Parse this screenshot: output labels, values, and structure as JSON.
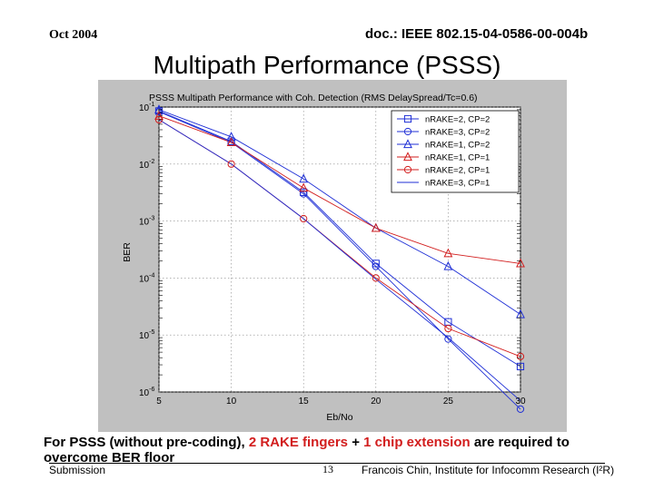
{
  "header": {
    "date": "Oct 2004",
    "doc_id": "doc.: IEEE 802.15-04-0586-00-004b",
    "slide_title": "Multipath Performance (PSSS)"
  },
  "caption": {
    "prefix": "For PSSS (without pre-coding), ",
    "highlight_1": "2 RAKE fingers",
    "middle": " + ",
    "highlight_2": "1 chip extension",
    "suffix": " are required to overcome BER floor"
  },
  "footer": {
    "submission": "Submission",
    "page_number": "13",
    "author": "Francois Chin, Institute for Infocomm Research (I²R)"
  },
  "chart_data": {
    "type": "line",
    "title": "PSSS Multipath Performance with Coh. Detection (RMS DelaySpread/Tc=0.6)",
    "xlabel": "Eb/No",
    "ylabel": "BER",
    "yscale": "log",
    "xlim": [
      5,
      30
    ],
    "ylim": [
      1e-06,
      0.1
    ],
    "x_ticks": [
      "5",
      "10",
      "15",
      "20",
      "25",
      "30"
    ],
    "y_ticks": [
      {
        "value": 0.1,
        "mantissa": "10",
        "exp": "-1"
      },
      {
        "value": 0.01,
        "mantissa": "10",
        "exp": "-2"
      },
      {
        "value": 0.001,
        "mantissa": "10",
        "exp": "-3"
      },
      {
        "value": 0.0001,
        "mantissa": "10",
        "exp": "-4"
      },
      {
        "value": 1e-05,
        "mantissa": "10",
        "exp": "-5"
      },
      {
        "value": 1e-06,
        "mantissa": "10",
        "exp": "-6"
      }
    ],
    "grid": true,
    "legend_position": "top-right",
    "x": [
      5,
      10,
      15,
      20,
      25,
      30
    ],
    "series": [
      {
        "name": "nRAKE=2, CP=2",
        "color": "#1f2fd6",
        "marker": "square",
        "values": [
          0.085,
          0.025,
          0.0032,
          0.00018,
          1.7e-05,
          2.8e-06
        ]
      },
      {
        "name": "nRAKE=3, CP=2",
        "color": "#1f2fd6",
        "marker": "circle",
        "values": [
          0.083,
          0.024,
          0.003,
          0.00016,
          8.5e-06,
          5e-07
        ]
      },
      {
        "name": "nRAKE=1, CP=2",
        "color": "#1f2fd6",
        "marker": "triangle",
        "values": [
          0.09,
          0.03,
          0.0055,
          0.00075,
          0.00016,
          2.3e-05
        ]
      },
      {
        "name": "nRAKE=1, CP=1",
        "color": "#d21e1e",
        "marker": "triangle",
        "values": [
          0.07,
          0.024,
          0.0038,
          0.00075,
          0.00027,
          0.00018
        ]
      },
      {
        "name": "nRAKE=2, CP=1",
        "color": "#d21e1e",
        "marker": "circle",
        "values": [
          0.06,
          0.01,
          0.0011,
          0.0001,
          1.3e-05,
          4.2e-06
        ]
      },
      {
        "name": "nRAKE=3, CP=1",
        "color": "#1f2fd6",
        "marker": "none",
        "values": [
          0.06,
          0.01,
          0.0011,
          9.5e-05,
          9e-06,
          7e-07
        ]
      }
    ]
  }
}
